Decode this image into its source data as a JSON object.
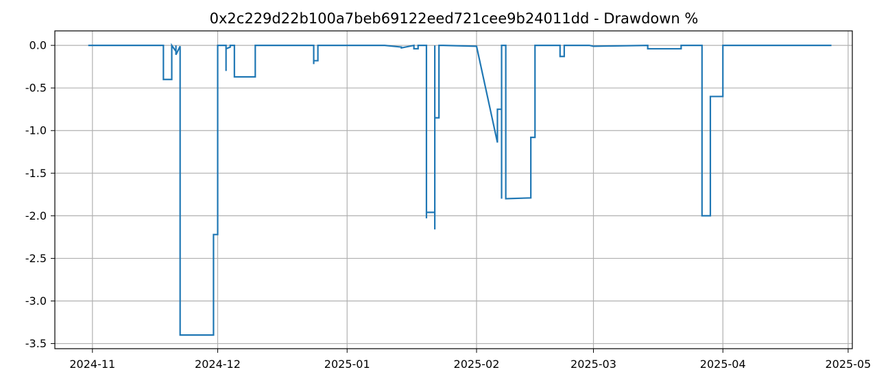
{
  "chart_data": {
    "type": "line",
    "title": "0x2c229d22b100a7beb69122eed721cee9b24011dd - Drawdown %",
    "xlabel": "",
    "ylabel": "",
    "x_axis": "date",
    "xlim": [
      "2024-10-23",
      "2025-05-02"
    ],
    "ylim": [
      -3.56,
      0.17
    ],
    "x_ticks": [
      "2024-11-01",
      "2024-12-01",
      "2025-01-01",
      "2025-02-01",
      "2025-03-01",
      "2025-04-01",
      "2025-05-01"
    ],
    "x_tick_labels": [
      "2024-11",
      "2024-12",
      "2025-01",
      "2025-02",
      "2025-03",
      "2025-04",
      "2025-05"
    ],
    "y_ticks": [
      0.0,
      -0.5,
      -1.0,
      -1.5,
      -2.0,
      -2.5,
      -3.0,
      -3.5
    ],
    "y_tick_labels": [
      "0.0",
      "-0.5",
      "-1.0",
      "-1.5",
      "-2.0",
      "-2.5",
      "-3.0",
      "-3.5"
    ],
    "grid": true,
    "line_color": "#1f77b4",
    "series": [
      {
        "x": [
          "2024-10-31",
          "2024-11-18",
          "2024-11-18",
          "2024-11-20",
          "2024-11-20",
          "2024-11-20",
          "2024-11-21",
          "2024-11-21",
          "2024-11-21",
          "2024-11-21",
          "2024-11-21",
          "2024-11-21",
          "2024-11-22",
          "2024-11-22",
          "2024-11-22",
          "2024-11-22",
          "2024-11-22",
          "2024-11-22",
          "2024-11-22",
          "2024-11-30",
          "2024-11-30",
          "2024-11-30",
          "2024-12-01",
          "2024-12-01",
          "2024-12-03",
          "2024-12-03",
          "2024-12-03",
          "2024-12-04",
          "2024-12-04",
          "2024-12-05",
          "2024-12-05",
          "2024-12-10",
          "2024-12-10",
          "2024-12-24",
          "2024-12-24",
          "2024-12-24",
          "2024-12-24",
          "2024-12-25",
          "2024-12-25",
          "2025-01-10",
          "2025-01-14",
          "2025-01-14",
          "2025-01-17",
          "2025-01-17",
          "2025-01-18",
          "2025-01-18",
          "2025-01-20",
          "2025-01-20",
          "2025-01-20",
          "2025-01-20",
          "2025-01-22",
          "2025-01-22",
          "2025-01-22",
          "2025-01-22",
          "2025-01-22",
          "2025-01-23",
          "2025-01-23",
          "2025-01-23",
          "2025-01-23",
          "2025-01-23",
          "2025-01-24",
          "2025-02-01",
          "2025-02-01",
          "2025-02-06",
          "2025-02-06",
          "2025-02-06",
          "2025-02-07",
          "2025-02-07",
          "2025-02-07",
          "2025-02-08",
          "2025-02-08",
          "2025-02-08",
          "2025-02-08",
          "2025-02-14",
          "2025-02-14",
          "2025-02-15",
          "2025-02-15",
          "2025-02-15",
          "2025-02-21",
          "2025-02-21",
          "2025-02-22",
          "2025-02-22",
          "2025-02-28",
          "2025-03-01",
          "2025-03-14",
          "2025-03-14",
          "2025-03-22",
          "2025-03-22",
          "2025-03-27",
          "2025-03-27",
          "2025-03-27",
          "2025-03-29",
          "2025-03-29",
          "2025-04-01",
          "2025-04-01",
          "2025-04-27"
        ],
        "values": [
          0.0,
          0.0,
          -0.4,
          -0.4,
          -0.05,
          0.0,
          -0.07,
          0.0,
          -0.05,
          -0.08,
          -0.02,
          -0.11,
          -0.01,
          -1.21,
          -0.88,
          -1.5,
          -3.12,
          -3.4,
          -3.4,
          -3.4,
          -3.0,
          -2.22,
          -2.22,
          0.0,
          0.0,
          -0.3,
          -0.04,
          -0.02,
          0.0,
          0.0,
          -0.37,
          -0.37,
          0.0,
          0.0,
          -0.22,
          -0.15,
          -0.18,
          -0.18,
          0.0,
          0.0,
          -0.02,
          -0.03,
          0.0,
          -0.04,
          -0.04,
          0.0,
          0.0,
          -1.97,
          -2.03,
          -1.96,
          -1.96,
          -2.16,
          -1.05,
          0.0,
          -0.85,
          -0.85,
          0.0,
          -0.02,
          -0.02,
          0.0,
          0.0,
          -0.01,
          -0.01,
          -1.14,
          -0.75,
          -0.75,
          -0.75,
          -1.8,
          0.0,
          0.0,
          -1.8,
          -1.8,
          -1.8,
          -1.79,
          -1.08,
          -1.08,
          0.0,
          0.0,
          0.0,
          -0.13,
          -0.13,
          0.0,
          0.0,
          -0.01,
          0.0,
          -0.04,
          -0.04,
          0.0,
          0.0,
          -1.72,
          -2.0,
          -2.0,
          -0.6,
          -0.6,
          0.0,
          0.0
        ]
      }
    ]
  }
}
